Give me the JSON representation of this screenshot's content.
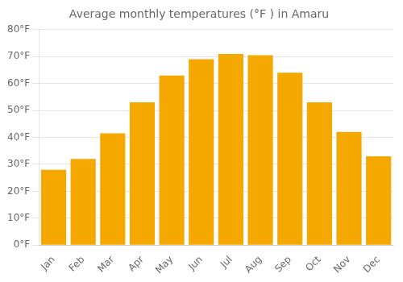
{
  "chart_data": {
    "type": "bar",
    "title": "Average monthly temperatures (°F ) in Amaru",
    "categories": [
      "Jan",
      "Feb",
      "Mar",
      "Apr",
      "May",
      "Jun",
      "Jul",
      "Aug",
      "Sep",
      "Oct",
      "Nov",
      "Dec"
    ],
    "values": [
      28,
      32,
      41.5,
      53,
      63,
      69,
      71,
      70.5,
      64,
      53,
      42,
      33
    ],
    "color": "#F5A800",
    "ylim": [
      0,
      80
    ],
    "yticks": [
      {
        "value": 0,
        "label": "0°F"
      },
      {
        "value": 10,
        "label": "10°F"
      },
      {
        "value": 20,
        "label": "20°F"
      },
      {
        "value": 30,
        "label": "30°F"
      },
      {
        "value": 40,
        "label": "40°F"
      },
      {
        "value": 50,
        "label": "50°F"
      },
      {
        "value": 60,
        "label": "60°F"
      },
      {
        "value": 70,
        "label": "70°F"
      },
      {
        "value": 80,
        "label": "80°F"
      }
    ],
    "grid": true
  }
}
